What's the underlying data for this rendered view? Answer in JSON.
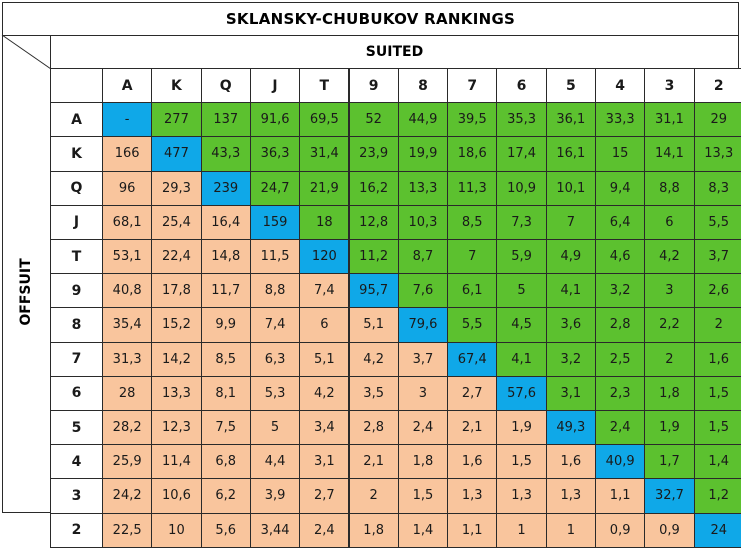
{
  "title": "SKLANSKY-CHUBUKOV RANKINGS",
  "suited_label": "SUITED",
  "offsuit_label": "OFFSUIT",
  "colors": {
    "suited": "#5cc12f",
    "offsuit": "#f9c59d",
    "pair": "#0fa8e8"
  },
  "chart_data": {
    "type": "table",
    "title": "SKLANSKY-CHUBUKOV RANKINGS",
    "column_group_label": "SUITED",
    "row_group_label": "OFFSUIT",
    "ranks": [
      "A",
      "K",
      "Q",
      "J",
      "T",
      "9",
      "8",
      "7",
      "6",
      "5",
      "4",
      "3",
      "2"
    ],
    "rows": [
      [
        "-",
        "277",
        "137",
        "91,6",
        "69,5",
        "52",
        "44,9",
        "39,5",
        "35,3",
        "36,1",
        "33,3",
        "31,1",
        "29"
      ],
      [
        "166",
        "477",
        "43,3",
        "36,3",
        "31,4",
        "23,9",
        "19,9",
        "18,6",
        "17,4",
        "16,1",
        "15",
        "14,1",
        "13,3"
      ],
      [
        "96",
        "29,3",
        "239",
        "24,7",
        "21,9",
        "16,2",
        "13,3",
        "11,3",
        "10,9",
        "10,1",
        "9,4",
        "8,8",
        "8,3"
      ],
      [
        "68,1",
        "25,4",
        "16,4",
        "159",
        "18",
        "12,8",
        "10,3",
        "8,5",
        "7,3",
        "7",
        "6,4",
        "6",
        "5,5"
      ],
      [
        "53,1",
        "22,4",
        "14,8",
        "11,5",
        "120",
        "11,2",
        "8,7",
        "7",
        "5,9",
        "4,9",
        "4,6",
        "4,2",
        "3,7"
      ],
      [
        "40,8",
        "17,8",
        "11,7",
        "8,8",
        "7,4",
        "95,7",
        "7,6",
        "6,1",
        "5",
        "4,1",
        "3,2",
        "3",
        "2,6"
      ],
      [
        "35,4",
        "15,2",
        "9,9",
        "7,4",
        "6",
        "5,1",
        "79,6",
        "5,5",
        "4,5",
        "3,6",
        "2,8",
        "2,2",
        "2"
      ],
      [
        "31,3",
        "14,2",
        "8,5",
        "6,3",
        "5,1",
        "4,2",
        "3,7",
        "67,4",
        "4,1",
        "3,2",
        "2,5",
        "2",
        "1,6"
      ],
      [
        "28",
        "13,3",
        "8,1",
        "5,3",
        "4,2",
        "3,5",
        "3",
        "2,7",
        "57,6",
        "3,1",
        "2,3",
        "1,8",
        "1,5"
      ],
      [
        "28,2",
        "12,3",
        "7,5",
        "5",
        "3,4",
        "2,8",
        "2,4",
        "2,1",
        "1,9",
        "49,3",
        "2,4",
        "1,9",
        "1,5"
      ],
      [
        "25,9",
        "11,4",
        "6,8",
        "4,4",
        "3,1",
        "2,1",
        "1,8",
        "1,6",
        "1,5",
        "1,6",
        "40,9",
        "1,7",
        "1,4"
      ],
      [
        "24,2",
        "10,6",
        "6,2",
        "3,9",
        "2,7",
        "2",
        "1,5",
        "1,3",
        "1,3",
        "1,3",
        "1,1",
        "32,7",
        "1,2"
      ],
      [
        "22,5",
        "10",
        "5,6",
        "3,44",
        "2,4",
        "1,8",
        "1,4",
        "1,1",
        "1",
        "1",
        "0,9",
        "0,9",
        "24"
      ]
    ]
  }
}
